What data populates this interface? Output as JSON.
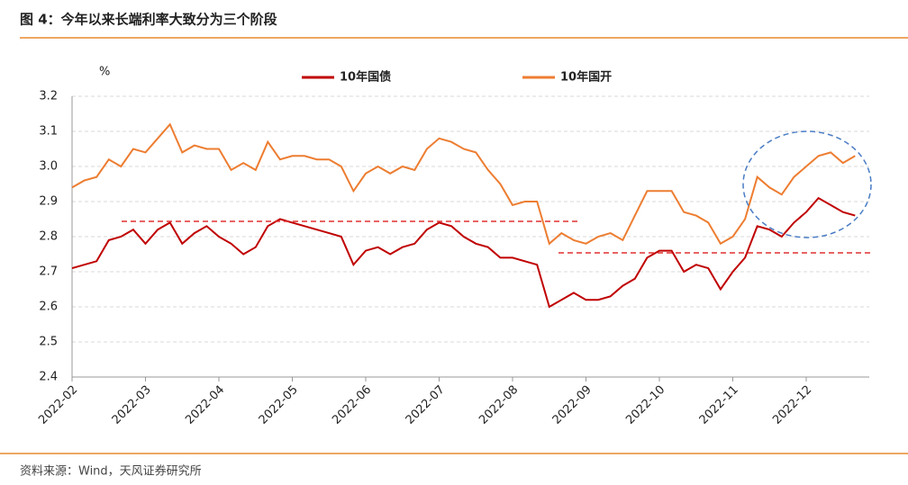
{
  "header": {
    "title": "图 4：今年以来长端利率大致分为三个阶段"
  },
  "chart_data": {
    "type": "line",
    "y_unit": "%",
    "categories": [
      "2022-02",
      null,
      null,
      null,
      null,
      null,
      "2022-03",
      null,
      null,
      null,
      null,
      null,
      "2022-04",
      null,
      null,
      null,
      null,
      null,
      "2022-05",
      null,
      null,
      null,
      null,
      null,
      "2022-06",
      null,
      null,
      null,
      null,
      null,
      "2022-07",
      null,
      null,
      null,
      null,
      null,
      "2022-08",
      null,
      null,
      null,
      null,
      null,
      "2022-09",
      null,
      null,
      null,
      null,
      null,
      "2022-10",
      null,
      null,
      null,
      null,
      null,
      "2022-11",
      null,
      null,
      null,
      null,
      null,
      "2022-12",
      null,
      null,
      null,
      null
    ],
    "series": [
      {
        "name": "10年国债",
        "color": "#c00000",
        "values": [
          2.71,
          2.72,
          2.73,
          2.79,
          2.8,
          2.82,
          2.78,
          2.82,
          2.84,
          2.78,
          2.81,
          2.83,
          2.8,
          2.78,
          2.75,
          2.77,
          2.83,
          2.85,
          2.84,
          2.83,
          2.82,
          2.81,
          2.8,
          2.72,
          2.76,
          2.77,
          2.75,
          2.77,
          2.78,
          2.82,
          2.84,
          2.83,
          2.8,
          2.78,
          2.77,
          2.74,
          2.74,
          2.73,
          2.72,
          2.6,
          2.62,
          2.64,
          2.62,
          2.62,
          2.63,
          2.66,
          2.68,
          2.74,
          2.76,
          2.76,
          2.7,
          2.72,
          2.71,
          2.65,
          2.7,
          2.74,
          2.83,
          2.82,
          2.8,
          2.84,
          2.87,
          2.91,
          2.89,
          2.87,
          2.86
        ]
      },
      {
        "name": "10年国开",
        "color": "#ed7d31",
        "values": [
          2.94,
          2.96,
          2.97,
          3.02,
          3.0,
          3.05,
          3.04,
          3.08,
          3.12,
          3.04,
          3.06,
          3.05,
          3.05,
          2.99,
          3.01,
          2.99,
          3.07,
          3.02,
          3.03,
          3.03,
          3.02,
          3.02,
          3.0,
          2.93,
          2.98,
          3.0,
          2.98,
          3.0,
          2.99,
          3.05,
          3.08,
          3.07,
          3.05,
          3.04,
          2.99,
          2.95,
          2.89,
          2.9,
          2.9,
          2.78,
          2.81,
          2.79,
          2.78,
          2.8,
          2.81,
          2.79,
          2.86,
          2.93,
          2.93,
          2.93,
          2.87,
          2.86,
          2.84,
          2.78,
          2.8,
          2.85,
          2.97,
          2.94,
          2.92,
          2.97,
          3.0,
          3.03,
          3.04,
          3.01,
          3.03
        ]
      }
    ],
    "ylim": [
      2.4,
      3.2
    ],
    "yticks": [
      2.4,
      2.5,
      2.6,
      2.7,
      2.8,
      2.9,
      {
        "value": 3,
        "label": "3.0"
      },
      3.1,
      3.2
    ],
    "grid": true
  },
  "footer": {
    "source": "资料来源：Wind，天风证券研究所"
  }
}
